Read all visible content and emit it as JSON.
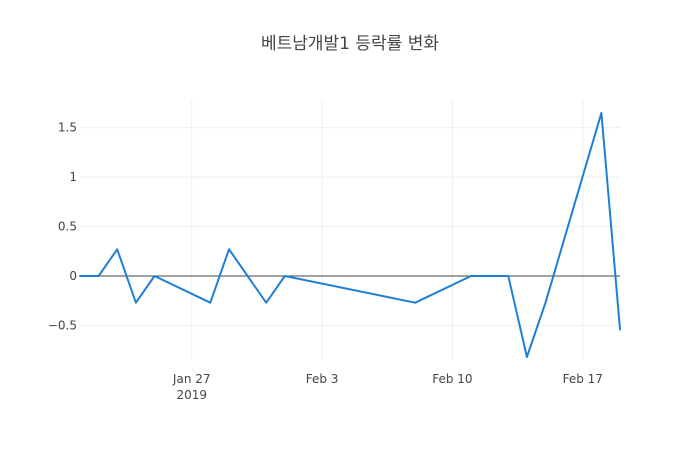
{
  "chart_data": {
    "type": "line",
    "title": "베트남개발1 등락률 변화",
    "xlabel": "",
    "ylabel": "",
    "grid": true,
    "legend": "none",
    "line_color": "#1f7fd6",
    "x_range": [
      "2019-01-21",
      "2019-02-19"
    ],
    "y_range": [
      -0.85,
      1.78
    ],
    "x_ticks": [
      {
        "date": "2019-01-27",
        "label": "Jan 27",
        "sublabel": "2019"
      },
      {
        "date": "2019-02-03",
        "label": "Feb 3",
        "sublabel": ""
      },
      {
        "date": "2019-02-10",
        "label": "Feb 10",
        "sublabel": ""
      },
      {
        "date": "2019-02-17",
        "label": "Feb 17",
        "sublabel": ""
      }
    ],
    "y_ticks": [
      {
        "value": -0.5,
        "label": "−0.5"
      },
      {
        "value": 0,
        "label": "0"
      },
      {
        "value": 0.5,
        "label": "0.5"
      },
      {
        "value": 1,
        "label": "1"
      },
      {
        "value": 1.5,
        "label": "1.5"
      }
    ],
    "series": [
      {
        "x": [
          "2019-01-21",
          "2019-01-22",
          "2019-01-23",
          "2019-01-24",
          "2019-01-25",
          "2019-01-28",
          "2019-01-29",
          "2019-01-31",
          "2019-02-01",
          "2019-02-08",
          "2019-02-11",
          "2019-02-12",
          "2019-02-13",
          "2019-02-14",
          "2019-02-15",
          "2019-02-18",
          "2019-02-19"
        ],
        "y": [
          0,
          0,
          0.27,
          -0.27,
          0,
          -0.27,
          0.27,
          -0.27,
          0,
          -0.27,
          0,
          0,
          0,
          -0.82,
          -0.27,
          1.65,
          -0.54
        ]
      }
    ]
  }
}
